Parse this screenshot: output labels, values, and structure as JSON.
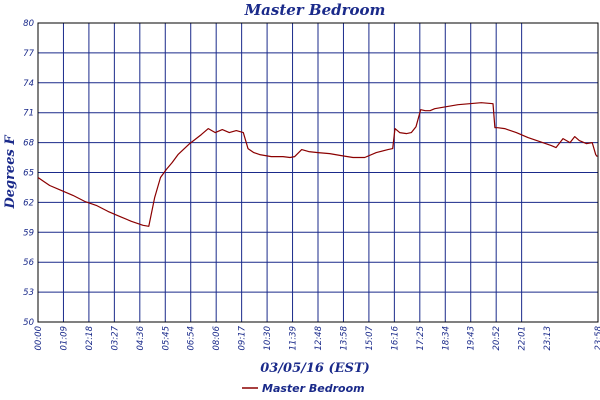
{
  "chart_data": {
    "type": "line",
    "title": "Master Bedroom",
    "xlabel": "03/05/16 (EST)",
    "ylabel": "Degrees F",
    "ylim": [
      50,
      80
    ],
    "y_ticks": [
      "80",
      "77",
      "74",
      "71",
      "68",
      "65",
      "62",
      "59",
      "56",
      "53",
      "50"
    ],
    "x_ticks": [
      "00:00",
      "01:09",
      "02:18",
      "03:27",
      "04:36",
      "05:45",
      "06:54",
      "08:06",
      "09:17",
      "10:30",
      "11:39",
      "12:48",
      "13:58",
      "15:07",
      "16:16",
      "17:25",
      "18:34",
      "19:43",
      "20:52",
      "22:01",
      "23:13",
      "23:58"
    ],
    "grid": true,
    "legend_position": "bottom",
    "series": [
      {
        "name": "Master Bedroom",
        "color": "#8b0000",
        "x": [
          0,
          0.25,
          0.5,
          1.0,
          1.5,
          2.0,
          2.5,
          3.0,
          3.5,
          4.0,
          4.5,
          4.75,
          5.0,
          5.25,
          5.5,
          5.75,
          6.0,
          6.5,
          7.0,
          7.3,
          7.6,
          7.9,
          8.2,
          8.5,
          8.8,
          9.0,
          9.25,
          9.5,
          10.0,
          10.5,
          10.8,
          11.0,
          11.3,
          11.6,
          12.0,
          12.5,
          13.0,
          13.5,
          14.0,
          14.5,
          15.0,
          15.2,
          15.3,
          15.5,
          15.8,
          16.0,
          16.2,
          16.4,
          16.6,
          16.8,
          17.0,
          17.5,
          18.0,
          18.5,
          19.0,
          19.5,
          19.58,
          19.7,
          20.0,
          20.5,
          21.0,
          21.5,
          22.0,
          22.2,
          22.5,
          22.8,
          23.0,
          23.2,
          23.5,
          23.75,
          23.9,
          23.97
        ],
        "y": [
          64.5,
          64.1,
          63.7,
          63.2,
          62.7,
          62.1,
          61.7,
          61.1,
          60.6,
          60.1,
          59.7,
          59.6,
          62.5,
          64.5,
          65.3,
          66.0,
          66.8,
          67.9,
          68.8,
          69.4,
          69.0,
          69.3,
          69.0,
          69.2,
          69.0,
          67.4,
          67.0,
          66.8,
          66.6,
          66.6,
          66.5,
          66.6,
          67.3,
          67.1,
          67.0,
          66.9,
          66.7,
          66.5,
          66.5,
          67.0,
          67.3,
          67.4,
          69.4,
          69.0,
          68.9,
          69.0,
          69.6,
          71.3,
          71.2,
          71.2,
          71.4,
          71.6,
          71.8,
          71.9,
          72.0,
          71.9,
          69.5,
          69.5,
          69.4,
          69.0,
          68.5,
          68.1,
          67.7,
          67.5,
          68.4,
          68.0,
          68.6,
          68.2,
          67.9,
          68.0,
          66.8,
          66.6
        ]
      }
    ]
  }
}
